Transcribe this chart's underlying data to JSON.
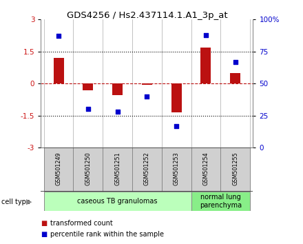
{
  "title": "GDS4256 / Hs2.437114.1.A1_3p_at",
  "samples": [
    "GSM501249",
    "GSM501250",
    "GSM501251",
    "GSM501252",
    "GSM501253",
    "GSM501254",
    "GSM501255"
  ],
  "transformed_counts": [
    1.2,
    -0.3,
    -0.55,
    -0.05,
    -1.35,
    1.7,
    0.5
  ],
  "percentile_ranks": [
    87,
    30,
    28,
    40,
    17,
    88,
    67
  ],
  "ylim_left": [
    -3,
    3
  ],
  "ylim_right": [
    0,
    100
  ],
  "yticks_left": [
    -3,
    -1.5,
    0,
    1.5,
    3
  ],
  "ytick_labels_left": [
    "-3",
    "-1.5",
    "0",
    "1.5",
    "3"
  ],
  "yticks_right": [
    0,
    25,
    50,
    75,
    100
  ],
  "ytick_labels_right": [
    "0",
    "25",
    "50",
    "75",
    "100%"
  ],
  "hlines": [
    1.5,
    -1.5
  ],
  "bar_color": "#BB1111",
  "scatter_color": "#0000CC",
  "cell_type_groups": [
    {
      "label": "caseous TB granulomas",
      "samples": [
        0,
        1,
        2,
        3,
        4
      ],
      "color": "#BBFFBB"
    },
    {
      "label": "normal lung\nparenchyma",
      "samples": [
        5,
        6
      ],
      "color": "#88EE88"
    }
  ],
  "cell_type_label": "cell type",
  "legend_items": [
    {
      "color": "#BB1111",
      "label": "transformed count"
    },
    {
      "color": "#0000CC",
      "label": "percentile rank within the sample"
    }
  ],
  "bar_width": 0.35,
  "scatter_size": 22,
  "background_color": "#FFFFFF",
  "box_color": "#D0D0D0",
  "box_edge_color": "#888888",
  "spine_color": "#888888"
}
